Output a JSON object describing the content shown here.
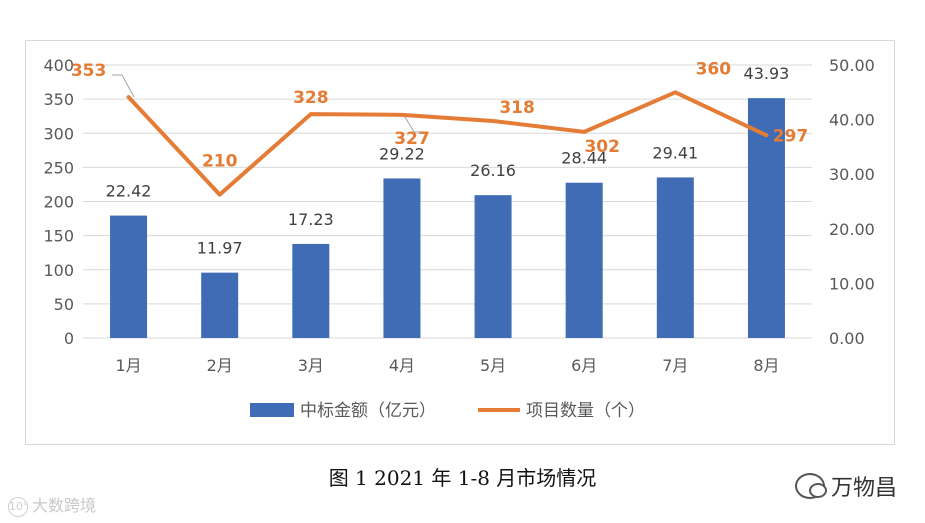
{
  "chart_data": {
    "type": "bar+line",
    "categories": [
      "1月",
      "2月",
      "3月",
      "4月",
      "5月",
      "6月",
      "7月",
      "8月"
    ],
    "series": [
      {
        "name": "中标金额（亿元）",
        "type": "bar",
        "axis": "right",
        "values": [
          22.42,
          11.97,
          17.23,
          29.22,
          26.16,
          28.44,
          29.41,
          43.93
        ],
        "labels": [
          "22.42",
          "11.97",
          "17.23",
          "29.22",
          "26.16",
          "28.44",
          "29.41",
          "43.93"
        ],
        "color": "#3f6cb5"
      },
      {
        "name": "项目数量（个）",
        "type": "line",
        "axis": "left",
        "values": [
          353,
          210,
          328,
          327,
          318,
          302,
          360,
          297
        ],
        "labels": [
          "353",
          "210",
          "328",
          "327",
          "318",
          "302",
          "360",
          "297"
        ],
        "color": "#e57c35"
      }
    ],
    "y_left": {
      "min": 0,
      "max": 400,
      "ticks": [
        "0",
        "50",
        "100",
        "150",
        "200",
        "250",
        "300",
        "350",
        "400"
      ]
    },
    "y_right": {
      "min": 0,
      "max": 50,
      "ticks": [
        "0.00",
        "10.00",
        "20.00",
        "30.00",
        "40.00",
        "50.00"
      ]
    },
    "grid": true,
    "legend_position": "bottom"
  },
  "caption": "图 1  2021 年 1-8 月市场情况",
  "watermarks": {
    "left": "大数跨境",
    "right": "万物昌"
  }
}
